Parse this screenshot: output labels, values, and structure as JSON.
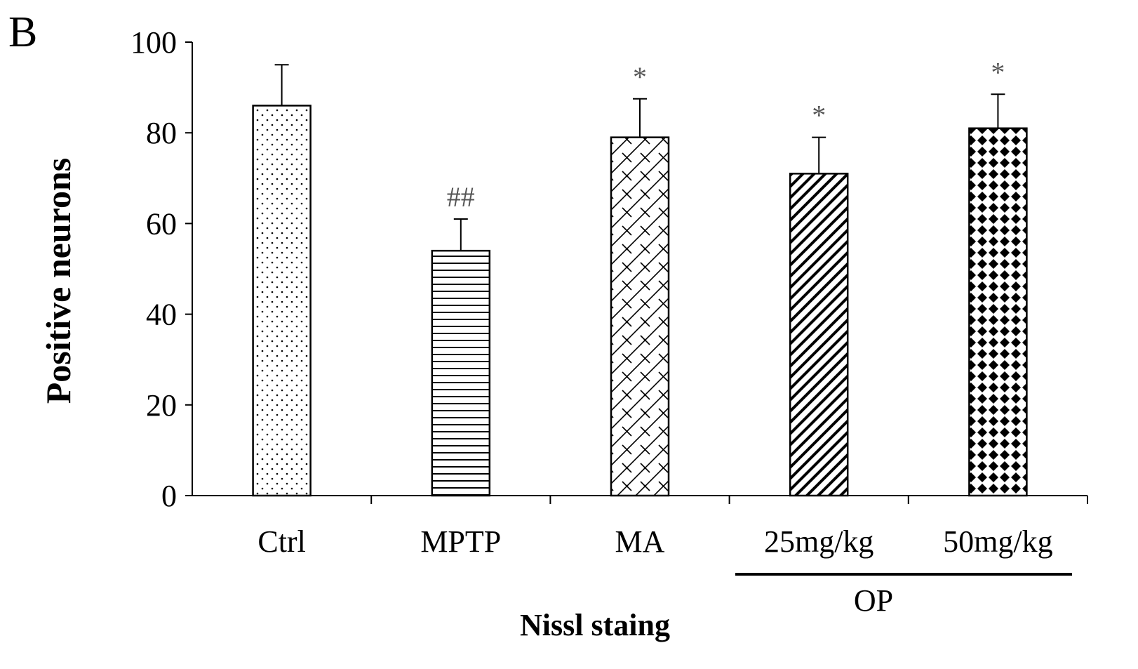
{
  "chart_data": {
    "type": "bar",
    "panel_label": "B",
    "title": "",
    "ylabel": "Positive neurons",
    "xlabel": "Nissl staing",
    "ylim": [
      0,
      100
    ],
    "yticks": [
      0,
      20,
      40,
      60,
      80,
      100
    ],
    "categories": [
      "Ctrl",
      "MPTP",
      "MA",
      "25mg/kg",
      "50mg/kg"
    ],
    "values": [
      86,
      54,
      79,
      71,
      81
    ],
    "errors": [
      9,
      7,
      8.5,
      8,
      7.5
    ],
    "annotations": [
      "",
      "##",
      "*",
      "*",
      "*"
    ],
    "patterns": [
      "dots",
      "horizontal-lines",
      "bricks",
      "diagonal-lines",
      "diamonds"
    ],
    "group_label": {
      "text": "OP",
      "categories": [
        "25mg/kg",
        "50mg/kg"
      ]
    },
    "colors": {
      "bar_stroke": "#000000",
      "bar_fill": "#ffffff",
      "annotation": "#555555"
    }
  }
}
